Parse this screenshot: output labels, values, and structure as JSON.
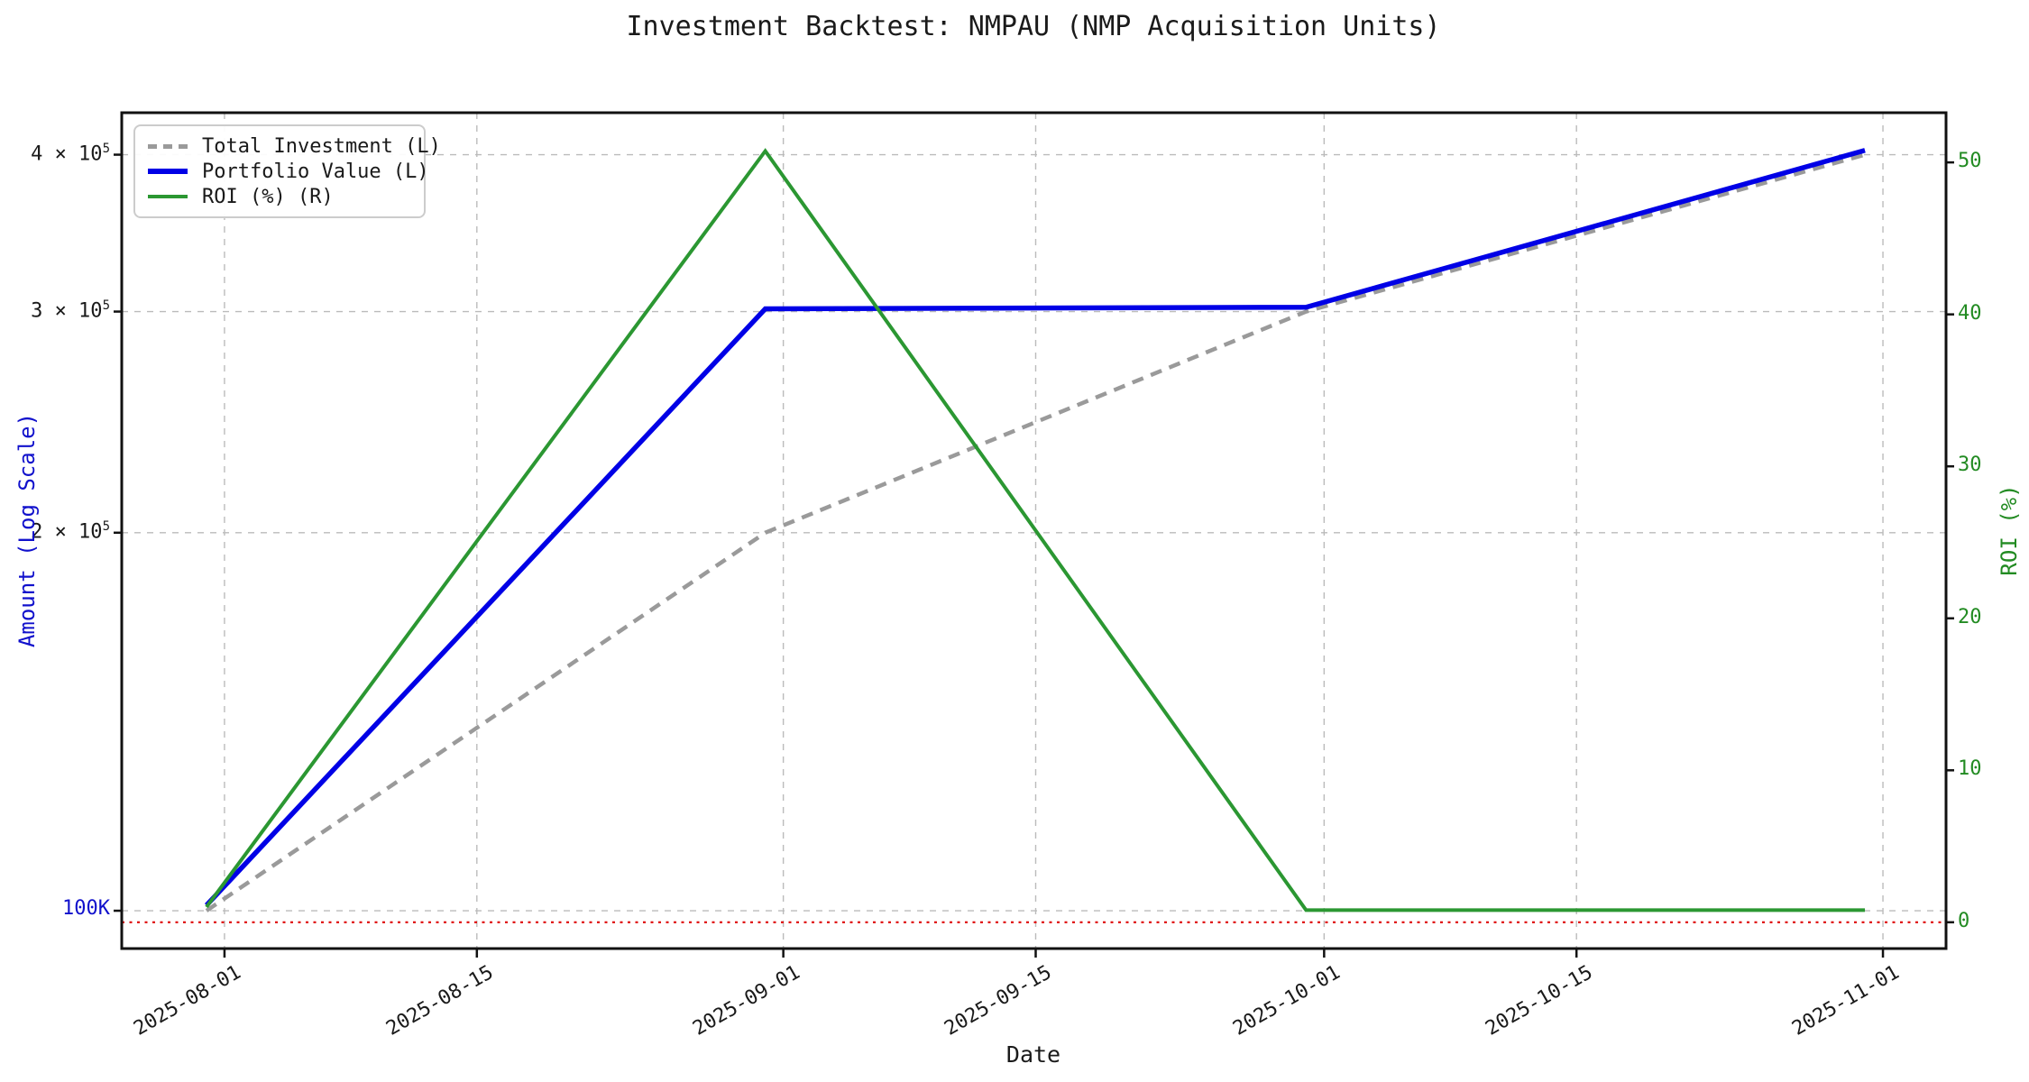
{
  "chart_data": {
    "type": "line",
    "title": "Investment Backtest: NMPAU (NMP Acquisition Units)",
    "xlabel": "Date",
    "ylabel_left": "Amount (Log Scale)",
    "ylabel_right": "ROI (%)",
    "grid": true,
    "legend_position": "upper-left",
    "x_dates": [
      "2025-07-31",
      "2025-08-31",
      "2025-09-30",
      "2025-10-31"
    ],
    "x_days": [
      -1,
      30,
      60,
      91
    ],
    "series": [
      {
        "name": "Total Investment (L)",
        "axis": "left",
        "style": "dashed",
        "color": "#9a9a9a",
        "width": 4.5,
        "values": [
          100000,
          200000,
          300000,
          400000
        ]
      },
      {
        "name": "Portfolio Value (L)",
        "axis": "left",
        "style": "solid",
        "color": "#0000e6",
        "width": 5.5,
        "values": [
          101000,
          301500,
          302400,
          403200
        ]
      },
      {
        "name": "ROI (%) (R)",
        "axis": "right",
        "style": "solid",
        "color": "#2b9732",
        "width": 4,
        "values": [
          1.0,
          50.75,
          0.8,
          0.8
        ]
      }
    ],
    "annotations": [
      {
        "type": "hline",
        "axis": "right",
        "value": 0,
        "color": "#e01010",
        "style": "dotted"
      }
    ],
    "axes": {
      "x": {
        "lim_days": [
          -5.7,
          95.5
        ],
        "ticks": [
          {
            "day": 0,
            "label": "2025-08-01"
          },
          {
            "day": 14,
            "label": "2025-08-15"
          },
          {
            "day": 31,
            "label": "2025-09-01"
          },
          {
            "day": 45,
            "label": "2025-09-15"
          },
          {
            "day": 61,
            "label": "2025-10-01"
          },
          {
            "day": 75,
            "label": "2025-10-15"
          },
          {
            "day": 92,
            "label": "2025-11-01"
          }
        ]
      },
      "left": {
        "scale": "log",
        "lim": [
          93300,
          432000
        ],
        "ticks": [
          {
            "value": 100000,
            "text": "100K",
            "sup": "",
            "color": "#1111cc"
          },
          {
            "value": 200000,
            "text": "2 × 10",
            "sup": "5",
            "color": "#1a1a1a"
          },
          {
            "value": 300000,
            "text": "3 × 10",
            "sup": "5",
            "color": "#1a1a1a"
          },
          {
            "value": 400000,
            "text": "4 × 10",
            "sup": "5",
            "color": "#1a1a1a"
          }
        ]
      },
      "right": {
        "scale": "linear",
        "lim": [
          -1.73,
          53.27
        ],
        "ticks": [
          {
            "value": 0,
            "label": "0"
          },
          {
            "value": 10,
            "label": "10"
          },
          {
            "value": 20,
            "label": "20"
          },
          {
            "value": 30,
            "label": "30"
          },
          {
            "value": 40,
            "label": "40"
          },
          {
            "value": 50,
            "label": "50"
          }
        ]
      }
    },
    "colors": {
      "left_axis_text": "#1111cc",
      "right_axis_text": "#228b22",
      "grid": "#bbbbbb",
      "spine": "#111111",
      "baseline": "#e01010"
    }
  }
}
